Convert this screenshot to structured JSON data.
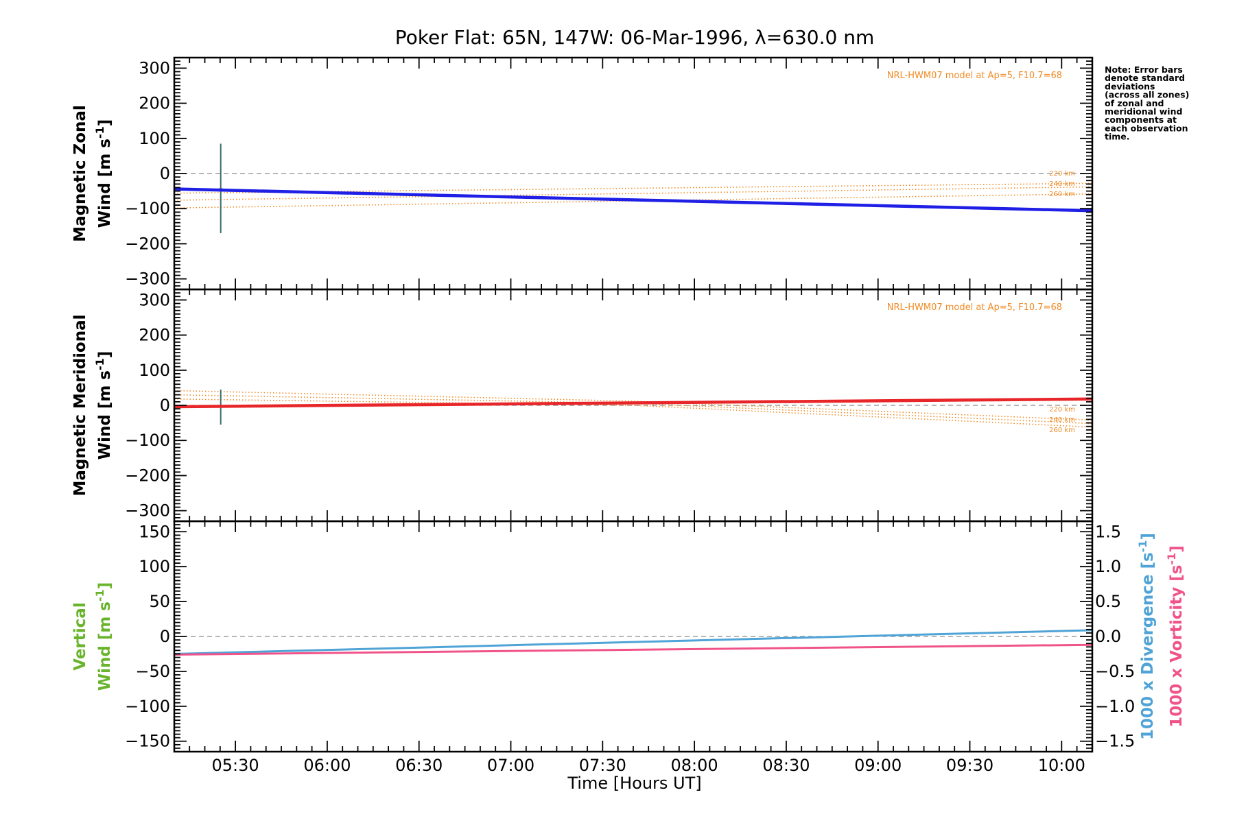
{
  "chart_data": {
    "type": "line",
    "title": "Poker Flat: 65N, 147W: 06-Mar-1996, λ=630.0 nm",
    "xlabel": "Time [Hours UT]",
    "xlim": [
      5.167,
      10.167
    ],
    "x_tick_values": [
      5.5,
      6.0,
      6.5,
      7.0,
      7.5,
      8.0,
      8.5,
      9.0,
      9.5,
      10.0
    ],
    "x_tick_labels": [
      "05:30",
      "06:00",
      "06:30",
      "07:00",
      "07:30",
      "08:00",
      "08:30",
      "09:00",
      "09:30",
      "10:00"
    ],
    "note": [
      "Note: Error bars",
      "denote standard",
      "deviations",
      "(across all zones)",
      "of zonal and",
      "meridional wind",
      "components at",
      "each observation",
      "time."
    ],
    "panels": [
      {
        "id": "zonal",
        "ylabel_line1": "Magnetic Zonal",
        "ylabel_line2": "Wind [m s",
        "ylabel_sup": "-1",
        "ylabel_close": "]",
        "ylim": [
          -330,
          330
        ],
        "yticks": [
          300,
          200,
          100,
          0,
          -100,
          -200,
          -300
        ],
        "ytick_labels": [
          "300",
          "200",
          "100",
          "0",
          "−100",
          "−200",
          "−300"
        ],
        "model_label": "NRL-HWM07 model at Ap=5, F10.7=68",
        "model_alt_labels": [
          "220 km",
          "240 km",
          "260 km"
        ],
        "series": [
          {
            "name": "Zonal wind",
            "color": "#1f1fe6",
            "x": [
              5.167,
              10.167
            ],
            "y": [
              -44,
              -106
            ]
          }
        ],
        "model_series": [
          {
            "name": "220 km",
            "x": [
              5.167,
              10.167
            ],
            "y": [
              -56,
              -28
            ]
          },
          {
            "name": "240 km",
            "x": [
              5.167,
              10.167
            ],
            "y": [
              -76,
              -38
            ]
          },
          {
            "name": "260 km",
            "x": [
              5.167,
              10.167
            ],
            "y": [
              -98,
              -58
            ]
          }
        ],
        "error_bar": {
          "x": 5.42,
          "center": -44,
          "low": -170,
          "high": 85
        }
      },
      {
        "id": "meridional",
        "ylabel_line1": "Magnetic Meridional",
        "ylabel_line2": "Wind [m s",
        "ylabel_sup": "-1",
        "ylabel_close": "]",
        "ylim": [
          -330,
          330
        ],
        "yticks": [
          300,
          200,
          100,
          0,
          -100,
          -200,
          -300
        ],
        "ytick_labels": [
          "300",
          "200",
          "100",
          "0",
          "−100",
          "−200",
          "−300"
        ],
        "model_label": "NRL-HWM07 model at Ap=5, F10.7=68",
        "model_alt_labels": [
          "220 km",
          "240 km",
          "260 km"
        ],
        "series": [
          {
            "name": "Meridional wind",
            "color": "#e8262a",
            "x": [
              5.167,
              10.167
            ],
            "y": [
              -4,
              18
            ]
          }
        ],
        "model_series": [
          {
            "name": "220 km",
            "x": [
              5.167,
              7.667,
              10.167
            ],
            "y": [
              42,
              12,
              -42
            ]
          },
          {
            "name": "240 km",
            "x": [
              5.167,
              7.667,
              10.167
            ],
            "y": [
              30,
              6,
              -52
            ]
          },
          {
            "name": "260 km",
            "x": [
              5.167,
              7.667,
              10.167
            ],
            "y": [
              18,
              0,
              -62
            ]
          }
        ],
        "error_bar": {
          "x": 5.42,
          "center": -4,
          "low": -55,
          "high": 45
        }
      },
      {
        "id": "vertical",
        "ylabel_line1": "Vertical",
        "ylabel_line2": "Wind [m s",
        "ylabel_sup": "-1",
        "ylabel_close": "]",
        "ylabel_color": "#6ab42d",
        "ylim": [
          -165,
          165
        ],
        "yticks": [
          150,
          100,
          50,
          0,
          -50,
          -100,
          -150
        ],
        "ytick_labels": [
          "150",
          "100",
          "50",
          "0",
          "−50",
          "−100",
          "−150"
        ],
        "right_axis": {
          "ylim": [
            -1.65,
            1.65
          ],
          "yticks": [
            1.5,
            1.0,
            0.5,
            0.0,
            -0.5,
            -1.0,
            -1.5
          ],
          "ytick_labels": [
            "1.5",
            "1.0",
            "0.5",
            "0.0",
            "−0.5",
            "−1.0",
            "−1.5"
          ],
          "label1": "1000 x Divergence [s",
          "label1_sup": "-1",
          "label1_close": "]",
          "label1_color": "#4fa3d6",
          "label2": "1000 x Vorticity [s",
          "label2_sup": "-1",
          "label2_close": "]",
          "label2_color": "#f0538a"
        },
        "series": [
          {
            "name": "1000 x Divergence",
            "color": "#4fa3d6",
            "axis": "right",
            "x": [
              5.167,
              10.167
            ],
            "y": [
              -0.25,
              0.09
            ]
          },
          {
            "name": "1000 x Vorticity",
            "color": "#f0538a",
            "axis": "right",
            "x": [
              5.167,
              10.167
            ],
            "y": [
              -0.26,
              -0.12
            ]
          }
        ]
      }
    ]
  },
  "colors": {
    "model": "#f08a24",
    "zero_line": "#8a8a8a",
    "zonal": "#1f1fe6",
    "meridional": "#e8262a",
    "divergence": "#4fa3d6",
    "vorticity": "#f0538a",
    "vertical_label": "#6ab42d"
  }
}
